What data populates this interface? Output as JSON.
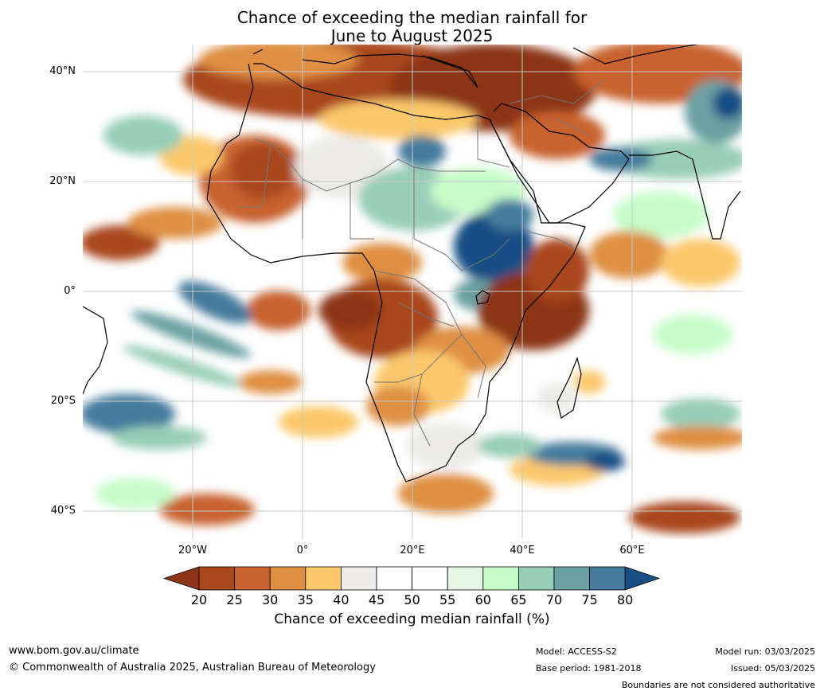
{
  "title": {
    "line1": "Chance of exceeding the median rainfall for",
    "line2": "June to August 2025"
  },
  "map": {
    "lat_labels": [
      "40°N",
      "20°N",
      "0°",
      "20°S",
      "40°S"
    ],
    "lon_labels": [
      "20°W",
      "0°",
      "20°E",
      "40°E",
      "60°E"
    ]
  },
  "colorbar": {
    "ticks": [
      "20",
      "25",
      "30",
      "35",
      "40",
      "45",
      "50",
      "55",
      "60",
      "65",
      "70",
      "75",
      "80"
    ],
    "colors": [
      "#8c3517",
      "#a9471f",
      "#c8622e",
      "#df8f42",
      "#fcc86c",
      "#ecebe8",
      "#ffffff",
      "#ffffff",
      "#e5f5e6",
      "#c6fcc9",
      "#98cdb8",
      "#6aa0a3",
      "#457b9d",
      "#174e84"
    ],
    "label": "Chance of exceeding median rainfall (%)"
  },
  "footer": {
    "website": "www.bom.gov.au/climate",
    "copyright": "© Commonwealth of Australia 2025, Australian Bureau of Meteorology",
    "model": "Model: ACCESS-S2",
    "base_period": "Base period: 1981-2018",
    "model_run": "Model run: 03/03/2025",
    "issued": "Issued: 05/03/2025",
    "disclaimer": "Boundaries are not considered authoritative"
  }
}
